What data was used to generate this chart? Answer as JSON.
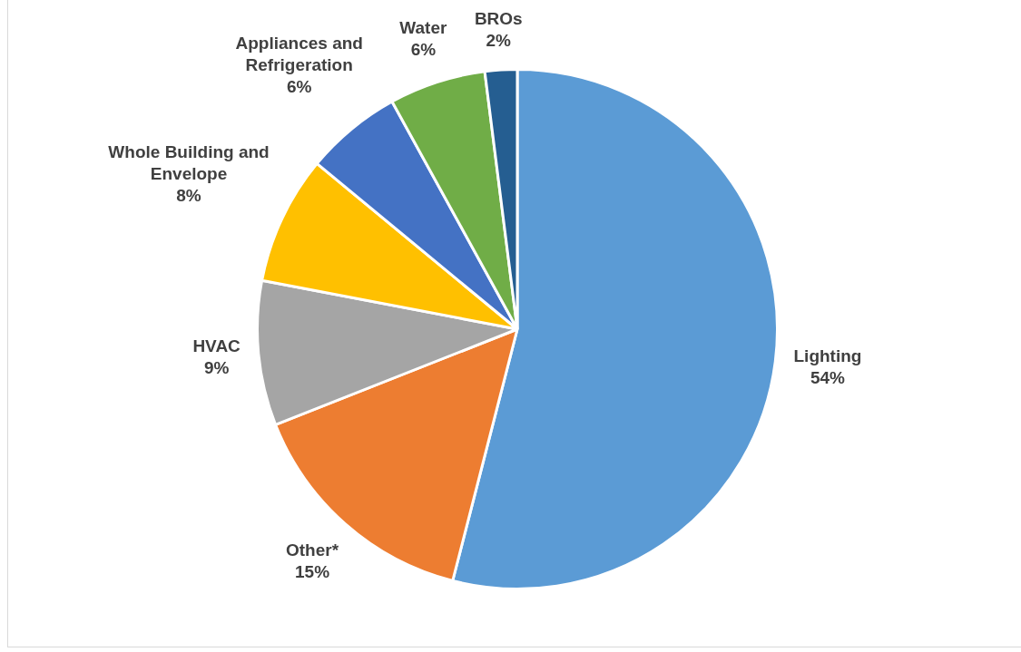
{
  "chart_data": {
    "type": "pie",
    "categories": [
      "Lighting",
      "Other*",
      "HVAC",
      "Whole Building and Envelope",
      "Appliances and Refrigeration",
      "Water",
      "BROs"
    ],
    "values": [
      54,
      15,
      9,
      8,
      6,
      6,
      2
    ],
    "value_labels": [
      "54%",
      "15%",
      "9%",
      "8%",
      "6%",
      "6%",
      "2%"
    ],
    "colors": [
      "#5b9bd5",
      "#ed7d31",
      "#a5a5a5",
      "#ffc000",
      "#4472c4",
      "#70ad47",
      "#255e91"
    ],
    "legend": false
  }
}
